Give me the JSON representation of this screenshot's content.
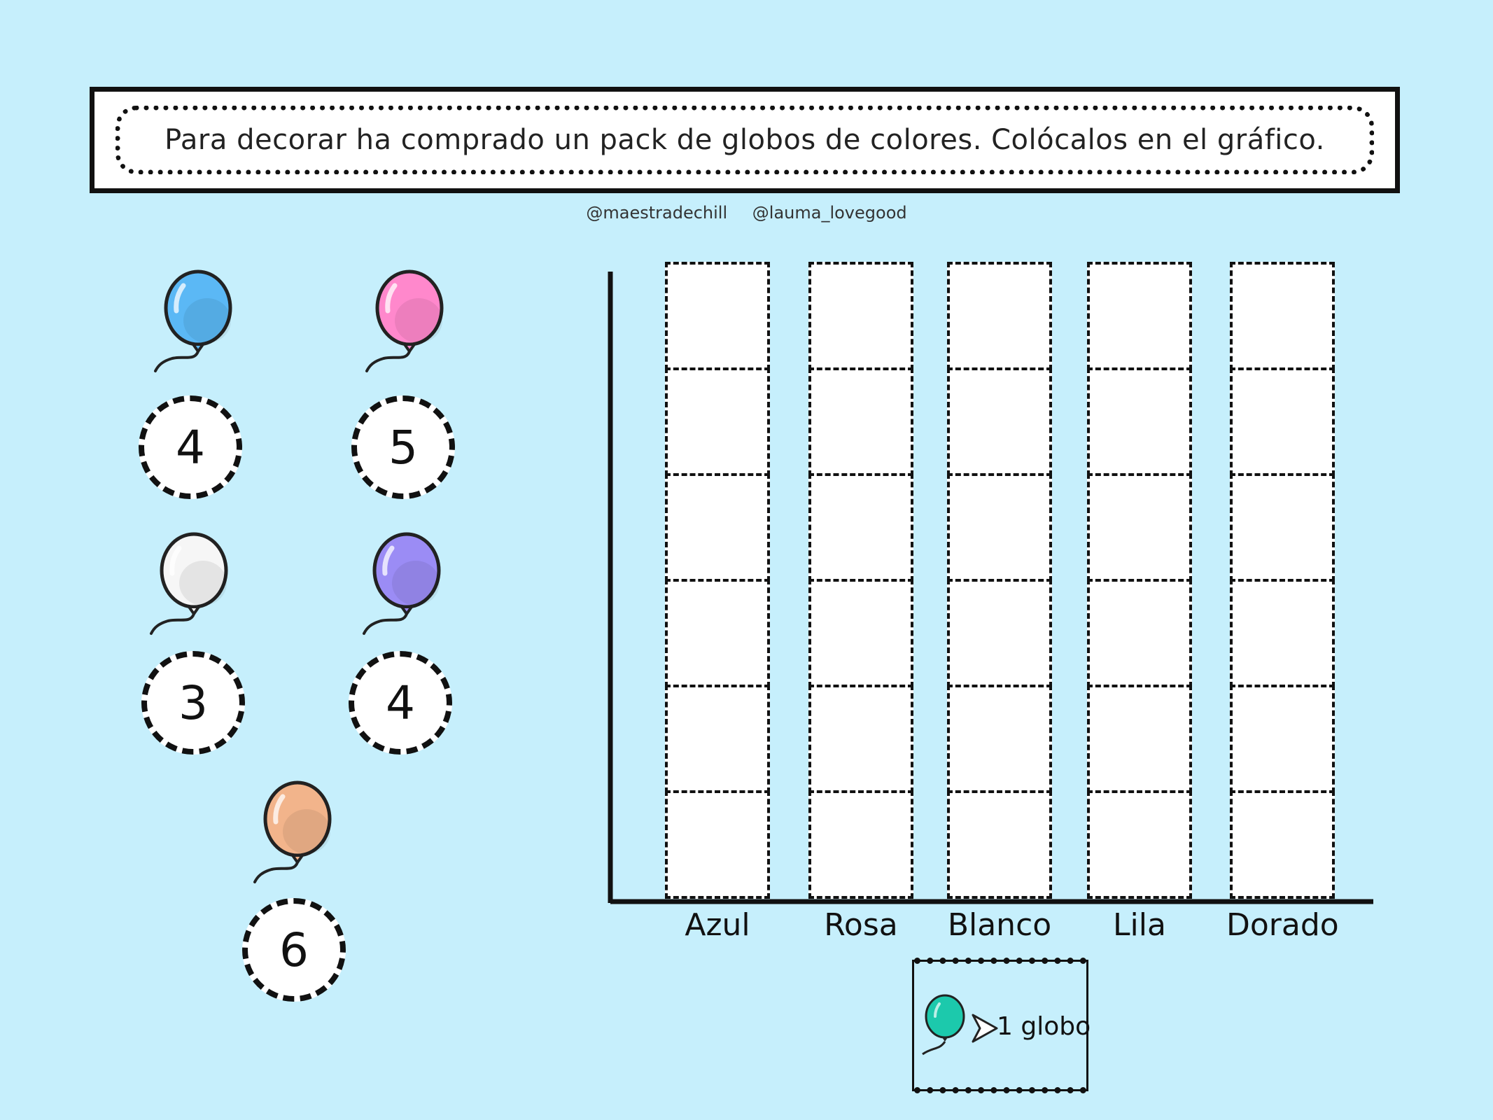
{
  "instruction": "Para decorar ha comprado un pack de globos de colores. Colócalos en el gráfico.",
  "credits": [
    "@maestradechill",
    "@lauma_lovegood"
  ],
  "balloon_cards": [
    {
      "color_name": "blue",
      "color": "#5bb8f5",
      "count": "4"
    },
    {
      "color_name": "pink",
      "color": "#ff88cc",
      "count": "5"
    },
    {
      "color_name": "white",
      "color": "#f6f6f6",
      "count": "3"
    },
    {
      "color_name": "purple",
      "color": "#9b8cf5",
      "count": "4"
    },
    {
      "color_name": "gold",
      "color": "#f2b48b",
      "count": "6"
    }
  ],
  "chart_data": {
    "type": "table",
    "categories": [
      "Azul",
      "Rosa",
      "Blanco",
      "Lila",
      "Dorado"
    ],
    "rows_per_category": 6,
    "values": [
      0,
      0,
      0,
      0,
      0
    ]
  },
  "legend": {
    "icon": "teal-balloon-icon",
    "color": "#1cc9ac",
    "label": "1 globo"
  }
}
